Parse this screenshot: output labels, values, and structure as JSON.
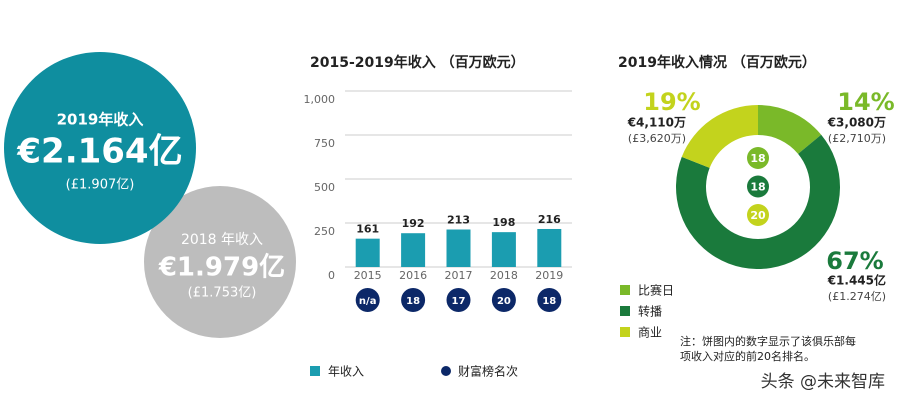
{
  "summary": [
    {
      "label": "2019年收入",
      "value": "€2.164亿",
      "gbp": "(£1.907亿)"
    },
    {
      "label": "2018 年收入",
      "value": "€1.979亿",
      "gbp": "(£1.753亿)"
    }
  ],
  "chart_data": [
    {
      "type": "bar",
      "title": "2015-2019年收入 （百万欧元）",
      "categories": [
        "2015",
        "2016",
        "2017",
        "2018",
        "2019"
      ],
      "series": [
        {
          "name": "年收入",
          "color": "#1b9db0",
          "values": [
            161,
            192,
            213,
            198,
            216
          ]
        }
      ],
      "ranks": {
        "name": "财富榜名次",
        "color": "#0c2868",
        "labels": [
          "n/a",
          "18",
          "17",
          "20",
          "18"
        ]
      },
      "ylim": [
        0,
        1000
      ],
      "yticks": [
        0,
        250,
        500,
        750,
        {
          "value": 1000,
          "label": "1,000"
        }
      ],
      "grid": true
    },
    {
      "type": "pie",
      "title": "2019年收入情况 （百万欧元）",
      "categories": [
        "比赛日",
        "转播",
        "商业"
      ],
      "values": [
        14,
        67,
        19
      ],
      "value_labels": [
        "14%",
        "67%",
        "19%"
      ],
      "colors": [
        "#7ab929",
        "#1a7a3c",
        "#c3d31d"
      ],
      "amounts": [
        "€3,080万",
        "€1.445亿",
        "€4,110万"
      ],
      "amounts_gbp": [
        "(£2,710万)",
        "(£1.274亿)",
        "(£3,620万)"
      ],
      "ranks": [
        "18",
        "18",
        "20"
      ],
      "note": [
        "注：饼图内的数字显示了该俱乐部每",
        "项收入对应的前20名排名。"
      ]
    }
  ],
  "watermark": "头条 @未来智库"
}
